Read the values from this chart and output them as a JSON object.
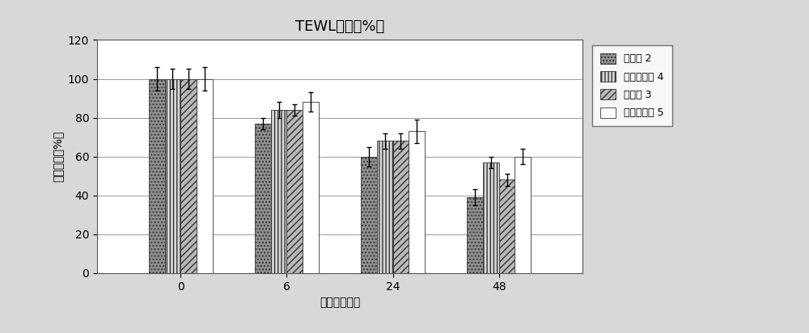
{
  "title": "TEWL改变（%）",
  "xlabel": "时间（小时）",
  "ylabel": "蒸发的水（%）",
  "x_labels": [
    "0",
    "6",
    "24",
    "48"
  ],
  "series": [
    {
      "name": "实施例 2",
      "values": [
        100,
        77,
        60,
        39
      ],
      "errors": [
        6,
        3,
        5,
        4
      ],
      "hatch": "....",
      "facecolor": "#909090",
      "edgecolor": "#333333"
    },
    {
      "name": "对比实施例 4",
      "values": [
        100,
        84,
        68,
        57
      ],
      "errors": [
        5,
        4,
        4,
        3
      ],
      "hatch": "||||",
      "facecolor": "#d8d8d8",
      "edgecolor": "#333333"
    },
    {
      "name": "实施例 3",
      "values": [
        100,
        84,
        68,
        48
      ],
      "errors": [
        5,
        3,
        4,
        3
      ],
      "hatch": "////",
      "facecolor": "#b8b8b8",
      "edgecolor": "#333333"
    },
    {
      "name": "对比实施例 5",
      "values": [
        100,
        88,
        73,
        60
      ],
      "errors": [
        6,
        5,
        6,
        4
      ],
      "hatch": "",
      "facecolor": "#ffffff",
      "edgecolor": "#333333"
    }
  ],
  "ylim": [
    0,
    120
  ],
  "yticks": [
    0,
    20,
    40,
    60,
    80,
    100,
    120
  ],
  "bar_width": 0.12,
  "group_positions": [
    0.2,
    1.0,
    1.8,
    2.6
  ],
  "figsize": [
    10.0,
    4.12
  ],
  "dpi": 100,
  "title_fontsize": 13,
  "label_fontsize": 10,
  "tick_fontsize": 10,
  "legend_fontsize": 9
}
